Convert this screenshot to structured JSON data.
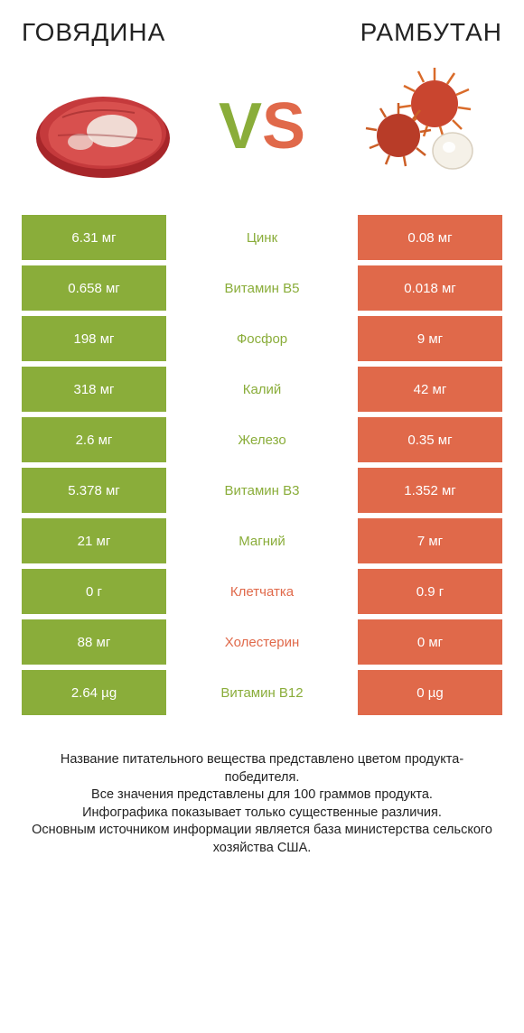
{
  "header": {
    "left": "ГОВЯДИНА",
    "right": "РАМБУТАН"
  },
  "vs": {
    "v": "V",
    "s": "S"
  },
  "colors": {
    "green": "#8aad3a",
    "orange": "#e0694a",
    "background": "#ffffff",
    "text": "#222222"
  },
  "rows": [
    {
      "left": "6.31 мг",
      "label": "Цинк",
      "right": "0.08 мг",
      "winner": "left"
    },
    {
      "left": "0.658 мг",
      "label": "Витамин B5",
      "right": "0.018 мг",
      "winner": "left"
    },
    {
      "left": "198 мг",
      "label": "Фосфор",
      "right": "9 мг",
      "winner": "left"
    },
    {
      "left": "318 мг",
      "label": "Калий",
      "right": "42 мг",
      "winner": "left"
    },
    {
      "left": "2.6 мг",
      "label": "Железо",
      "right": "0.35 мг",
      "winner": "left"
    },
    {
      "left": "5.378 мг",
      "label": "Витамин B3",
      "right": "1.352 мг",
      "winner": "left"
    },
    {
      "left": "21 мг",
      "label": "Магний",
      "right": "7 мг",
      "winner": "left"
    },
    {
      "left": "0 г",
      "label": "Клетчатка",
      "right": "0.9 г",
      "winner": "right"
    },
    {
      "left": "88 мг",
      "label": "Холестерин",
      "right": "0 мг",
      "winner": "right"
    },
    {
      "left": "2.64 µg",
      "label": "Витамин B12",
      "right": "0 µg",
      "winner": "left"
    }
  ],
  "footer": "Название питательного вещества представлено цветом продукта-победителя.\nВсе значения представлены для 100 граммов продукта.\nИнфографика показывает только существенные различия.\nОсновным источником информации является база министерства сельского хозяйства США."
}
